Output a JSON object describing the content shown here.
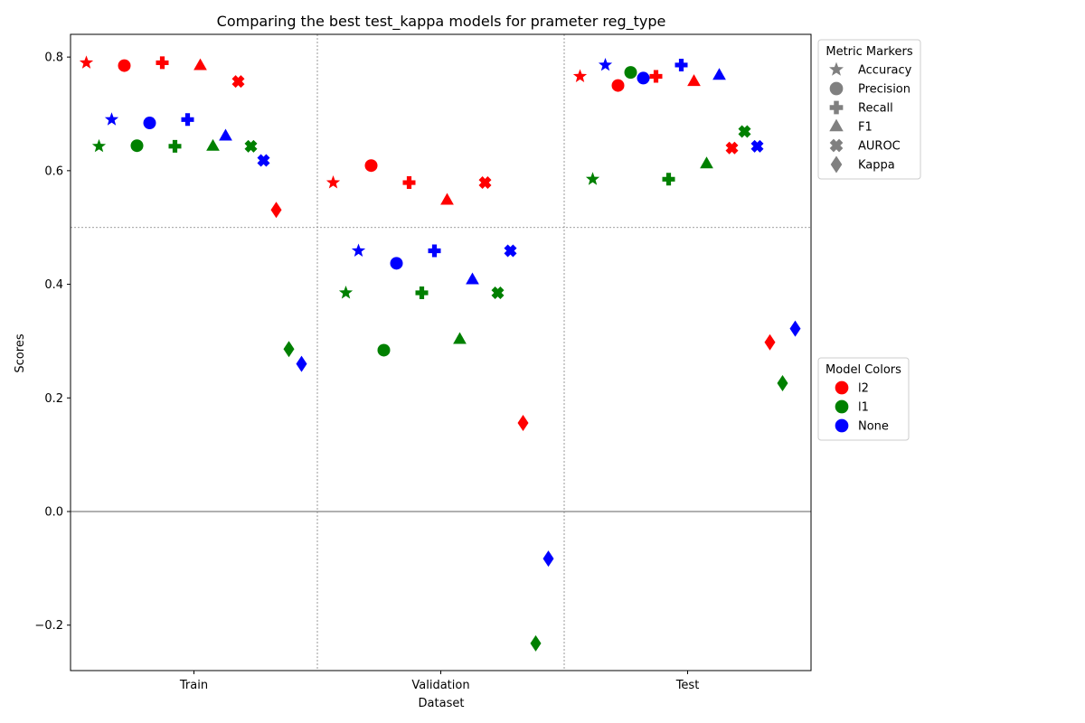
{
  "chart_data": {
    "type": "scatter",
    "title": "Comparing the best test_kappa models for prameter reg_type",
    "xlabel": "Dataset",
    "ylabel": "Scores",
    "categories": [
      "Train",
      "Validation",
      "Test"
    ],
    "ylim": [
      -0.28,
      0.84
    ],
    "yticks": [
      -0.2,
      0.0,
      0.2,
      0.4,
      0.6,
      0.8
    ],
    "ytick_labels": [
      "−0.2",
      "0.0",
      "0.2",
      "0.4",
      "0.6",
      "0.8"
    ],
    "metrics": [
      "Accuracy",
      "Precision",
      "Recall",
      "F1",
      "AUROC",
      "Kappa"
    ],
    "metric_markers": {
      "Accuracy": "star",
      "Precision": "circle",
      "Recall": "plus",
      "F1": "triangle",
      "AUROC": "x",
      "Kappa": "diamond"
    },
    "series": [
      {
        "name": "l2",
        "color": "#ff0000",
        "values": {
          "Train": {
            "Accuracy": 0.79,
            "Precision": 0.785,
            "Recall": 0.79,
            "F1": 0.785,
            "AUROC": 0.757,
            "Kappa": 0.531
          },
          "Validation": {
            "Accuracy": 0.579,
            "Precision": 0.609,
            "Recall": 0.579,
            "F1": 0.548,
            "AUROC": 0.579,
            "Kappa": 0.156
          },
          "Test": {
            "Accuracy": 0.766,
            "Precision": 0.75,
            "Recall": 0.766,
            "F1": 0.757,
            "AUROC": 0.64,
            "Kappa": 0.298
          }
        }
      },
      {
        "name": "l1",
        "color": "#008000",
        "values": {
          "Train": {
            "Accuracy": 0.643,
            "Precision": 0.644,
            "Recall": 0.643,
            "F1": 0.643,
            "AUROC": 0.643,
            "Kappa": 0.286
          },
          "Validation": {
            "Accuracy": 0.385,
            "Precision": 0.284,
            "Recall": 0.385,
            "F1": 0.303,
            "AUROC": 0.385,
            "Kappa": -0.232
          },
          "Test": {
            "Accuracy": 0.585,
            "Precision": 0.773,
            "Recall": 0.585,
            "F1": 0.612,
            "AUROC": 0.669,
            "Kappa": 0.226
          }
        }
      },
      {
        "name": "None",
        "color": "#0000ff",
        "values": {
          "Train": {
            "Accuracy": 0.69,
            "Precision": 0.684,
            "Recall": 0.69,
            "F1": 0.661,
            "AUROC": 0.618,
            "Kappa": 0.26
          },
          "Validation": {
            "Accuracy": 0.459,
            "Precision": 0.437,
            "Recall": 0.459,
            "F1": 0.408,
            "AUROC": 0.459,
            "Kappa": -0.083
          },
          "Test": {
            "Accuracy": 0.786,
            "Precision": 0.763,
            "Recall": 0.786,
            "F1": 0.768,
            "AUROC": 0.643,
            "Kappa": 0.322
          }
        }
      }
    ],
    "reference_lines": {
      "y_solid": 0.0,
      "y_dotted": 0.5
    },
    "legends": [
      {
        "title": "Metric Markers",
        "placement": "right-top",
        "entries": [
          "Accuracy",
          "Precision",
          "Recall",
          "F1",
          "AUROC",
          "Kappa"
        ],
        "color": "#808080"
      },
      {
        "title": "Model Colors",
        "placement": "right-middle",
        "entries": [
          "l2",
          "l1",
          "None"
        ],
        "colors": [
          "#ff0000",
          "#008000",
          "#0000ff"
        ]
      }
    ],
    "grid": false
  }
}
